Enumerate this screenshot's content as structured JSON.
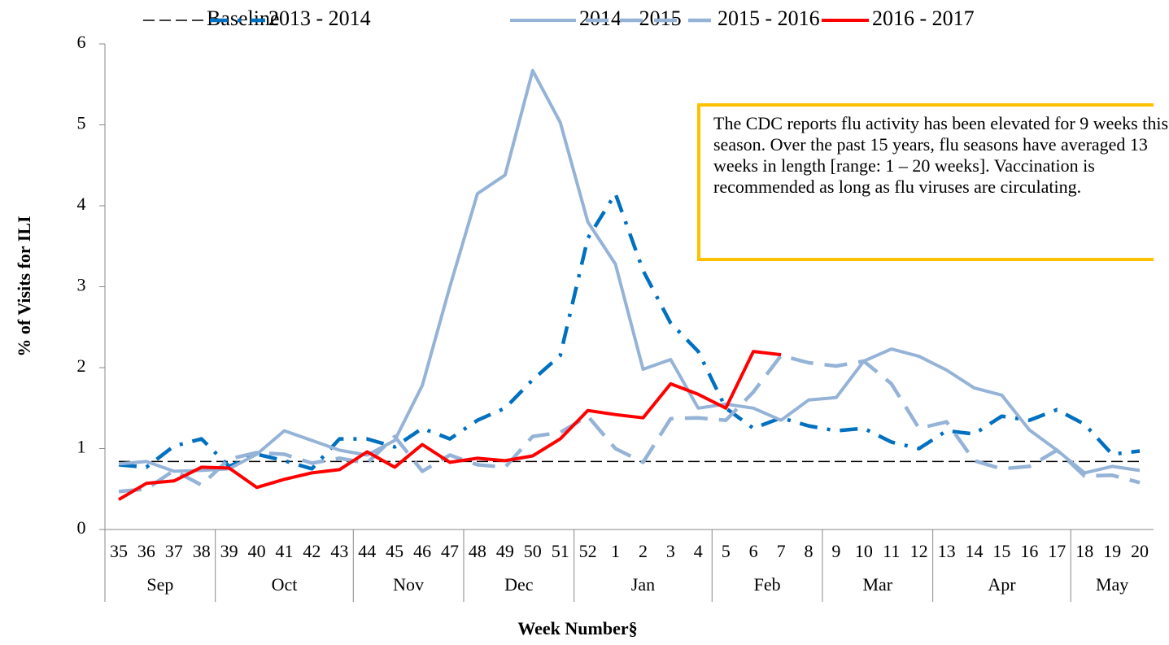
{
  "chart_data": {
    "type": "line",
    "y_label": "% of Visits for ILI",
    "x_label": "Week Number§",
    "annotation": "The CDC reports flu activity has been elevated for 9 weeks this season. Over the past 15 years, flu seasons have averaged 13 weeks in length [range: 1 – 20 weeks]. Vaccination is recommended as long as flu viruses are circulating.",
    "categories": [
      "35",
      "36",
      "37",
      "38",
      "39",
      "40",
      "41",
      "42",
      "43",
      "44",
      "45",
      "46",
      "47",
      "48",
      "49",
      "50",
      "51",
      "52",
      "1",
      "2",
      "3",
      "4",
      "5",
      "6",
      "7",
      "8",
      "9",
      "10",
      "11",
      "12",
      "13",
      "14",
      "15",
      "16",
      "17",
      "18",
      "19",
      "20"
    ],
    "months": [
      "Sep",
      null,
      null,
      null,
      "Oct",
      null,
      null,
      null,
      null,
      "Nov",
      null,
      null,
      null,
      "Dec",
      null,
      null,
      null,
      "Jan",
      null,
      null,
      null,
      null,
      "Feb",
      null,
      null,
      null,
      "Mar",
      null,
      null,
      null,
      "Apr",
      null,
      null,
      null,
      null,
      "May",
      null,
      null
    ],
    "ylim": [
      0,
      6
    ],
    "yticks": [
      0,
      1,
      2,
      3,
      4,
      5,
      6
    ],
    "series": [
      {
        "name": "Baseline",
        "color": "#000000",
        "dash": "dashed",
        "width": 1.5,
        "values": [
          0.84,
          0.84,
          0.84,
          0.84,
          0.84,
          0.84,
          0.84,
          0.84,
          0.84,
          0.84,
          0.84,
          0.84,
          0.84,
          0.84,
          0.84,
          0.84,
          0.84,
          0.84,
          0.84,
          0.84,
          0.84,
          0.84,
          0.84,
          0.84,
          0.84,
          0.84,
          0.84,
          0.84,
          0.84,
          0.84,
          0.84,
          0.84,
          0.84,
          0.84,
          0.84,
          0.84,
          0.84,
          0.84
        ]
      },
      {
        "name": "2013 - 2014",
        "color": "#0070c0",
        "dash": "dashdot",
        "width": 4.5,
        "values": [
          0.8,
          0.77,
          1.03,
          1.12,
          0.78,
          0.93,
          0.85,
          0.75,
          1.12,
          1.12,
          1.02,
          1.25,
          1.12,
          1.35,
          1.5,
          1.85,
          2.15,
          3.6,
          4.15,
          3.2,
          2.55,
          2.2,
          1.5,
          1.25,
          1.38,
          1.28,
          1.22,
          1.25,
          1.08,
          1.0,
          1.22,
          1.18,
          1.4,
          1.35,
          1.48,
          1.3,
          0.93,
          0.97
        ]
      },
      {
        "name": "2014 - 2015",
        "color": "#95b3d7",
        "dash": "solid",
        "width": 4,
        "values": [
          0.81,
          0.84,
          0.72,
          0.73,
          0.75,
          0.93,
          1.22,
          1.1,
          0.98,
          0.92,
          1.1,
          1.78,
          3.0,
          4.15,
          4.38,
          5.67,
          5.03,
          3.8,
          3.28,
          1.98,
          2.1,
          1.5,
          1.55,
          1.5,
          1.35,
          1.6,
          1.63,
          2.08,
          2.23,
          2.14,
          1.97,
          1.75,
          1.66,
          1.23,
          0.98,
          0.7,
          0.78,
          0.73
        ]
      },
      {
        "name": "2015 - 2016",
        "color": "#95b3d7",
        "dash": "longdash",
        "width": 4.5,
        "values": [
          0.47,
          0.5,
          0.73,
          0.55,
          0.87,
          0.95,
          0.93,
          0.82,
          0.88,
          0.82,
          1.15,
          0.72,
          0.92,
          0.8,
          0.77,
          1.15,
          1.2,
          1.4,
          1.0,
          0.83,
          1.37,
          1.38,
          1.35,
          1.7,
          2.15,
          2.06,
          2.02,
          2.08,
          1.8,
          1.25,
          1.33,
          0.85,
          0.75,
          0.78,
          0.98,
          0.66,
          0.67,
          0.58
        ]
      },
      {
        "name": "2016 - 2017",
        "color": "#ff0000",
        "dash": "solid",
        "width": 4,
        "values": [
          0.37,
          0.57,
          0.6,
          0.77,
          0.76,
          0.52,
          0.62,
          0.7,
          0.74,
          0.96,
          0.77,
          1.05,
          0.83,
          0.88,
          0.85,
          0.91,
          1.12,
          1.47,
          1.42,
          1.38,
          1.8,
          1.67,
          1.5,
          2.2,
          2.16,
          null,
          null,
          null,
          null,
          null,
          null,
          null,
          null,
          null,
          null,
          null,
          null,
          null
        ]
      }
    ]
  }
}
